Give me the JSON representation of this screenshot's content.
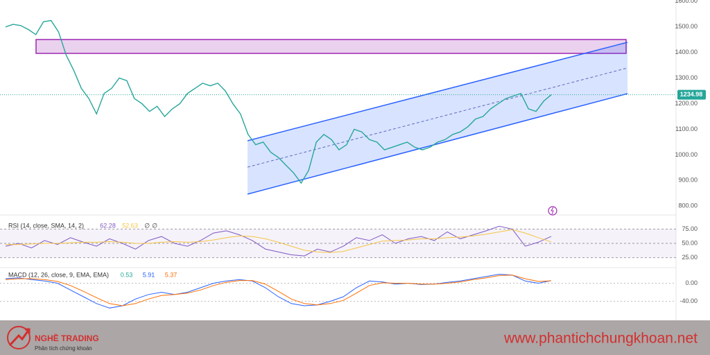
{
  "chart_data": [
    {
      "type": "line",
      "color": "#26a69a",
      "values": [
        1500,
        1510,
        1505,
        1490,
        1470,
        1520,
        1525,
        1480,
        1390,
        1330,
        1260,
        1220,
        1160,
        1240,
        1260,
        1300,
        1290,
        1220,
        1200,
        1170,
        1190,
        1150,
        1180,
        1200,
        1240,
        1260,
        1280,
        1270,
        1280,
        1250,
        1200,
        1160,
        1080,
        1040,
        1050,
        1010,
        990,
        960,
        930,
        890,
        940,
        1050,
        1080,
        1060,
        1020,
        1040,
        1100,
        1090,
        1060,
        1050,
        1020,
        1030,
        1040,
        1050,
        1030,
        1020,
        1030,
        1050,
        1060,
        1080,
        1090,
        1110,
        1140,
        1150,
        1180,
        1200,
        1220,
        1230,
        1240,
        1180,
        1170,
        1210,
        1235
      ],
      "ylim": [
        790,
        1605
      ],
      "yticks": [
        {
          "value": 1600,
          "label": "1600.00"
        },
        {
          "value": 1500,
          "label": "1500.00"
        },
        {
          "value": 1400,
          "label": "1400.00"
        },
        {
          "value": 1300,
          "label": "1300.00"
        },
        {
          "value": 1200,
          "label": "1200.00"
        },
        {
          "value": 1100,
          "label": "1100.00"
        },
        {
          "value": 1000,
          "label": "1000.00"
        },
        {
          "value": 900,
          "label": "900.00"
        },
        {
          "value": 800,
          "label": "800.00"
        }
      ],
      "last_price": 1234.98
    },
    {
      "type": "line",
      "title": "RSI (14, close, SMA, 14, 2)",
      "legend_values": [
        62.28,
        52.63
      ],
      "legend_texts": [
        "∅",
        "∅"
      ],
      "series": [
        {
          "color": "#7e57c2",
          "values": [
            45,
            50,
            42,
            55,
            48,
            60,
            52,
            45,
            58,
            50,
            40,
            55,
            62,
            50,
            45,
            55,
            68,
            72,
            65,
            55,
            40,
            35,
            30,
            28,
            40,
            35,
            45,
            60,
            55,
            65,
            50,
            58,
            62,
            55,
            70,
            58,
            65,
            72,
            80,
            75,
            45,
            52,
            62.28
          ]
        },
        {
          "color": "#f5c542",
          "values": [
            48,
            48,
            49,
            50,
            50,
            51,
            52,
            52,
            53,
            52,
            50,
            50,
            52,
            53,
            52,
            53,
            56,
            60,
            63,
            62,
            58,
            52,
            45,
            38,
            35,
            34,
            36,
            42,
            48,
            54,
            55,
            56,
            58,
            58,
            60,
            61,
            63,
            66,
            70,
            74,
            68,
            60,
            52.63
          ]
        }
      ],
      "ylim": [
        10,
        90
      ],
      "yticks": [
        {
          "value": 75,
          "label": "75.00"
        },
        {
          "value": 50,
          "label": "50.00"
        },
        {
          "value": 25,
          "label": "25.00"
        }
      ]
    },
    {
      "type": "line",
      "title": "MACD (12, 26, close, 9, EMA, EMA)",
      "legend_values": [
        0.53,
        5.91,
        5.37
      ],
      "legend_colors": [
        "#26a69a",
        "#2962ff",
        "#ff6d00"
      ],
      "series": [
        {
          "color": "#2962ff",
          "values": [
            10,
            12,
            8,
            5,
            0,
            -15,
            -30,
            -45,
            -55,
            -50,
            -35,
            -25,
            -20,
            -25,
            -20,
            -10,
            0,
            5,
            8,
            5,
            -10,
            -30,
            -45,
            -50,
            -48,
            -40,
            -30,
            -10,
            5,
            3,
            -2,
            0,
            -3,
            -2,
            2,
            5,
            10,
            15,
            20,
            18,
            5,
            0,
            5.91
          ]
        },
        {
          "color": "#ff6d00",
          "values": [
            8,
            10,
            10,
            8,
            4,
            -5,
            -18,
            -32,
            -45,
            -50,
            -45,
            -35,
            -27,
            -25,
            -22,
            -15,
            -5,
            2,
            6,
            6,
            -2,
            -18,
            -35,
            -45,
            -48,
            -45,
            -38,
            -22,
            -5,
            1,
            0,
            0,
            -2,
            -2,
            0,
            3,
            8,
            12,
            17,
            18,
            10,
            4,
            5.37
          ]
        }
      ],
      "ylim": [
        -70,
        30
      ],
      "yticks": [
        {
          "value": 0,
          "label": "0.00"
        },
        {
          "value": -40,
          "label": "-40.00"
        }
      ]
    }
  ],
  "branding": {
    "logo_name": "NGHỀ TRADING",
    "logo_tagline": "Phân tích chứng khoán",
    "website": "www.phantichchungkhoan.net"
  }
}
